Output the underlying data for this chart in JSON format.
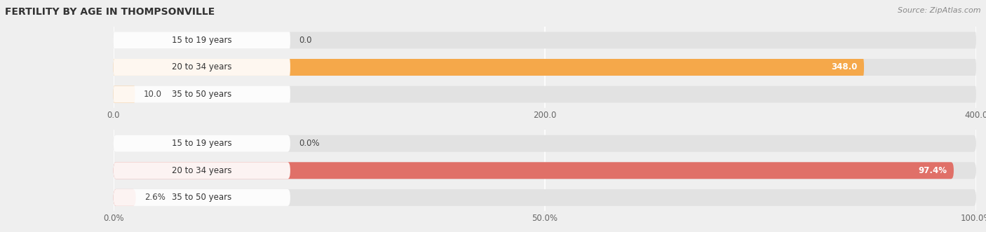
{
  "title": "FERTILITY BY AGE IN THOMPSONVILLE",
  "source": "Source: ZipAtlas.com",
  "top_chart": {
    "categories": [
      "15 to 19 years",
      "20 to 34 years",
      "35 to 50 years"
    ],
    "values": [
      0.0,
      348.0,
      10.0
    ],
    "xlim": [
      0,
      400
    ],
    "xticks": [
      0.0,
      200.0,
      400.0
    ],
    "xtick_labels": [
      "0.0",
      "200.0",
      "400.0"
    ],
    "bar_color_main": "#F5A84A",
    "bar_color_light": "#F5C98A",
    "label_values": [
      "0.0",
      "348.0",
      "10.0"
    ],
    "label_inside": [
      false,
      true,
      false
    ]
  },
  "bottom_chart": {
    "categories": [
      "15 to 19 years",
      "20 to 34 years",
      "35 to 50 years"
    ],
    "values": [
      0.0,
      97.4,
      2.6
    ],
    "xlim": [
      0,
      100
    ],
    "xticks": [
      0.0,
      50.0,
      100.0
    ],
    "xtick_labels": [
      "0.0%",
      "50.0%",
      "100.0%"
    ],
    "bar_color_main": "#E07068",
    "bar_color_light": "#EBA8A4",
    "label_values": [
      "0.0%",
      "97.4%",
      "2.6%"
    ],
    "label_inside": [
      false,
      true,
      false
    ]
  },
  "bg_color": "#efefef",
  "bar_bg_color": "#e2e2e2",
  "title_fontsize": 10,
  "source_fontsize": 8,
  "tick_fontsize": 8.5,
  "bar_label_fontsize": 8.5,
  "category_fontsize": 8.5
}
